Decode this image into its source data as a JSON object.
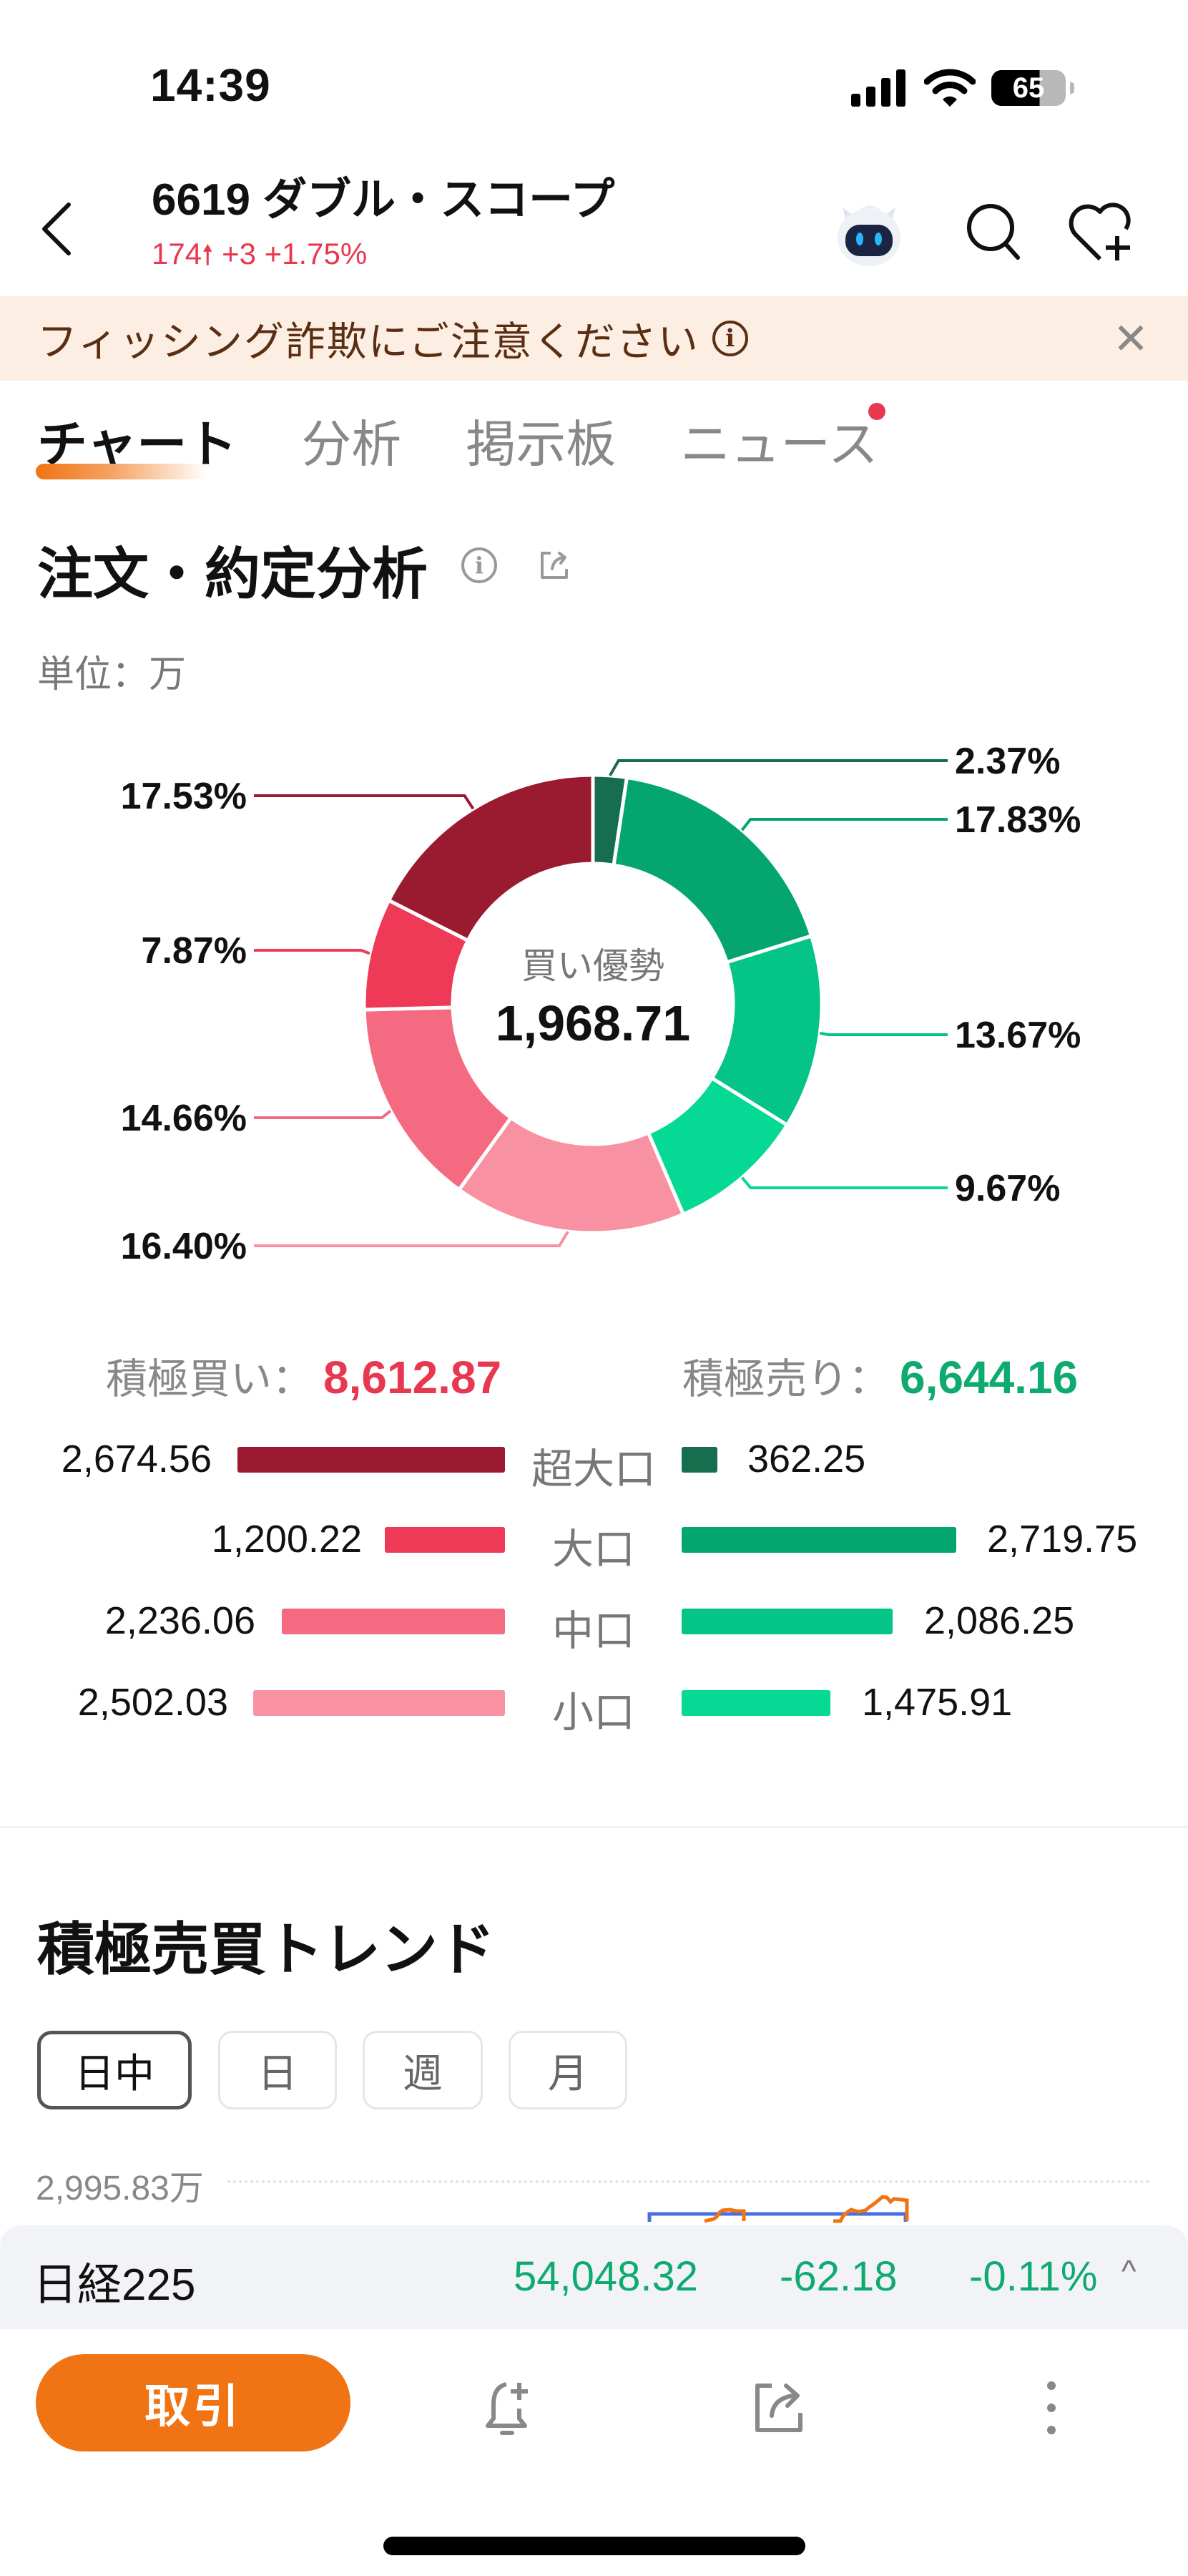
{
  "status_bar": {
    "time": "14:39",
    "battery": "65"
  },
  "header": {
    "title": "6619 ダブル・スコープ",
    "price": "174",
    "change": "+3",
    "change_pct": "+1.75%",
    "icons": [
      "back-icon",
      "ai-assistant-icon",
      "search-icon",
      "heart-plus-icon"
    ]
  },
  "banner": {
    "text": "フィッシング詐欺にご注意ください",
    "close": "✕"
  },
  "tabs": [
    {
      "label": "チャート",
      "active": true
    },
    {
      "label": "分析",
      "active": false
    },
    {
      "label": "掲示板",
      "active": false
    },
    {
      "label": "ニュース",
      "active": false,
      "badge": true
    }
  ],
  "order_analysis": {
    "title": "注文・約定分析",
    "unit": "単位：万",
    "center_caption": "買い優勢",
    "center_value": "1,968.71",
    "totals": {
      "buy_label": "積極買い：",
      "buy_value": "8,612.87",
      "sell_label": "積極売り：",
      "sell_value": "6,644.16"
    },
    "rows": [
      {
        "category": "超大口",
        "buy": "2,674.56",
        "sell": "362.25"
      },
      {
        "category": "大口",
        "buy": "1,200.22",
        "sell": "2,719.75"
      },
      {
        "category": "中口",
        "buy": "2,236.06",
        "sell": "2,086.25"
      },
      {
        "category": "小口",
        "buy": "2,502.03",
        "sell": "1,475.91"
      }
    ],
    "colors": {
      "buy": [
        "#9a1b2f",
        "#ee3a56",
        "#f46b81",
        "#f891a2"
      ],
      "sell": [
        "#166e4e",
        "#04a56f",
        "#04c487",
        "#06d994"
      ]
    }
  },
  "chart_data": [
    {
      "type": "pie",
      "title": "注文・約定分析",
      "subtitle": "買い優勢 1,968.71",
      "unit": "万",
      "categories": [
        "売り超大口",
        "売り大口",
        "売り中口",
        "売り小口",
        "買い小口",
        "買い中口",
        "買い大口",
        "買い超大口"
      ],
      "values": [
        2.37,
        17.83,
        13.67,
        9.67,
        16.4,
        14.66,
        7.87,
        17.53
      ],
      "labels": [
        "2.37%",
        "17.83%",
        "13.67%",
        "9.67%",
        "16.40%",
        "14.66%",
        "7.87%",
        "17.53%"
      ],
      "colors": [
        "#166e4e",
        "#04a56f",
        "#04c487",
        "#06d994",
        "#f891a2",
        "#f46b81",
        "#ee3a56",
        "#9a1b2f"
      ],
      "donut": true
    },
    {
      "type": "bar",
      "title": "積極買い / 積極売り",
      "categories": [
        "超大口",
        "大口",
        "中口",
        "小口"
      ],
      "series": [
        {
          "name": "積極買い",
          "values": [
            2674.56,
            1200.22,
            2236.06,
            2502.03
          ]
        },
        {
          "name": "積極売り",
          "values": [
            362.25,
            2719.75,
            2086.25,
            1475.91
          ]
        }
      ],
      "orientation": "horizontal-diverging"
    },
    {
      "type": "line",
      "title": "積極売買トレンド",
      "y_tick_labels": [
        "2,995.83万"
      ],
      "grid": true
    }
  ],
  "trend": {
    "title": "積極売買トレンド",
    "periods": [
      {
        "label": "日中",
        "active": true
      },
      {
        "label": "日",
        "active": false
      },
      {
        "label": "週",
        "active": false
      },
      {
        "label": "月",
        "active": false
      }
    ],
    "y_label": "2,995.83万"
  },
  "index_ticker": {
    "name": "日経225",
    "value": "54,048.32",
    "change": "-62.18",
    "change_pct": "-0.11%",
    "chevron": "^"
  },
  "toolbar": {
    "trade_label": "取引",
    "icons": [
      "alert-plus-icon",
      "share-icon",
      "more-icon"
    ]
  }
}
